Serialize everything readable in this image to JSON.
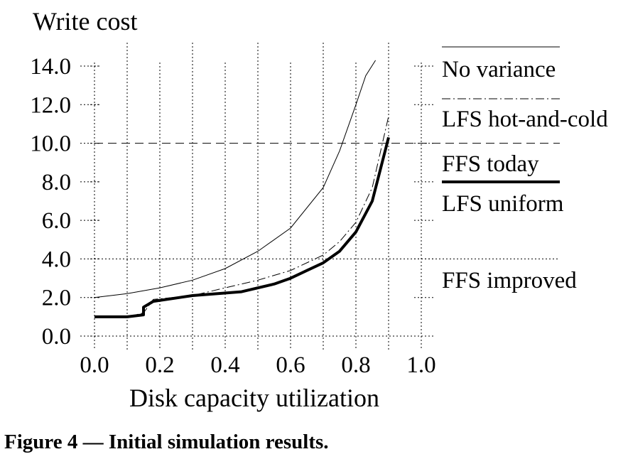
{
  "chart_data": {
    "type": "line",
    "ylabel": "Write cost",
    "xlabel": "Disk capacity utilization",
    "xlim": [
      0,
      1
    ],
    "ylim": [
      0,
      14
    ],
    "x_ticks": [
      "0.0",
      "0.2",
      "0.4",
      "0.6",
      "0.8",
      "1.0"
    ],
    "y_ticks": [
      "0.0",
      "2.0",
      "4.0",
      "6.0",
      "8.0",
      "10.0",
      "12.0",
      "14.0"
    ],
    "grid": "dotted",
    "legend_position": "right",
    "series": [
      {
        "name": "No variance",
        "style": "thin-solid",
        "x": [
          0.0,
          0.1,
          0.2,
          0.3,
          0.4,
          0.5,
          0.6,
          0.7,
          0.75,
          0.8,
          0.83,
          0.86
        ],
        "y": [
          2.0,
          2.2,
          2.5,
          2.9,
          3.5,
          4.4,
          5.6,
          7.7,
          9.6,
          12.0,
          13.5,
          14.3
        ]
      },
      {
        "name": "LFS hot-and-cold",
        "style": "dash-dot",
        "x": [
          0.0,
          0.1,
          0.15,
          0.18,
          0.3,
          0.4,
          0.5,
          0.6,
          0.7,
          0.75,
          0.8,
          0.85,
          0.9
        ],
        "y": [
          1.0,
          1.0,
          1.2,
          1.9,
          2.1,
          2.5,
          2.9,
          3.4,
          4.2,
          4.9,
          5.9,
          7.7,
          11.4
        ]
      },
      {
        "name": "LFS uniform",
        "style": "thick-solid",
        "x": [
          0.0,
          0.1,
          0.15,
          0.15,
          0.18,
          0.3,
          0.45,
          0.55,
          0.6,
          0.65,
          0.7,
          0.75,
          0.8,
          0.85,
          0.9
        ],
        "y": [
          1.0,
          1.0,
          1.1,
          1.5,
          1.8,
          2.1,
          2.3,
          2.7,
          3.0,
          3.4,
          3.8,
          4.4,
          5.4,
          7.0,
          10.3
        ]
      },
      {
        "name": "FFS today",
        "style": "dashed",
        "x": [
          0.0,
          1.0
        ],
        "y": [
          10.0,
          10.0
        ]
      },
      {
        "name": "FFS improved",
        "style": "dotted",
        "x": [
          0.0,
          1.0
        ],
        "y": [
          4.0,
          4.0
        ]
      }
    ],
    "caption": "Figure 4 — Initial simulation results."
  }
}
